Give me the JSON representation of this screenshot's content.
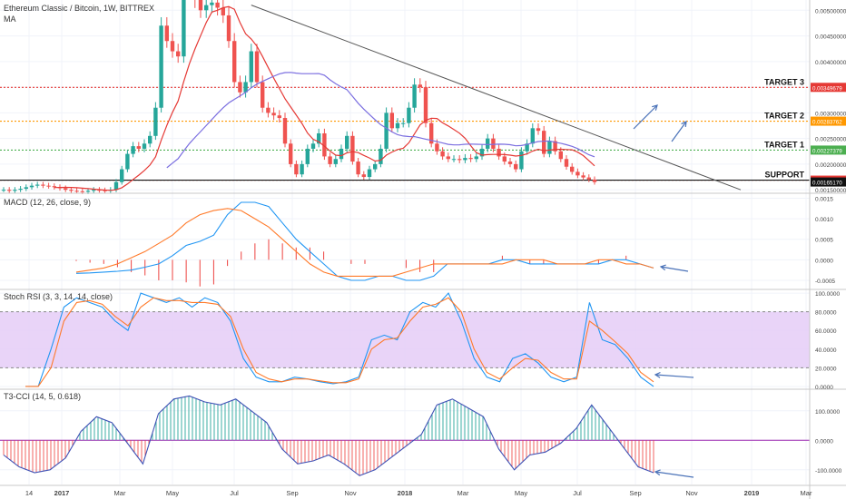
{
  "header": {
    "symbol": "Ethereum Classic / Bitcoin, 1W, BITTREX",
    "ma_label": "MA"
  },
  "colors": {
    "up": "#26a69a",
    "down": "#ef5350",
    "ma_red": "#e53935",
    "ma_blue": "#7b6fe0",
    "trendline": "#555555",
    "target3": "#e53935",
    "target2": "#ff9800",
    "target1": "#4caf50",
    "support": "#111111",
    "macd_line": "#2196f3",
    "signal_line": "#ff7a2a",
    "rsi_band": "#e5ccf7",
    "arrow": "#4a72b8"
  },
  "x_axis": {
    "ticks": [
      "14",
      "2017",
      "Mar",
      "May",
      "Jul",
      "Sep",
      "Nov",
      "2018",
      "Mar",
      "May",
      "Jul",
      "Sep",
      "Nov",
      "2019",
      "Mar"
    ],
    "bold_ticks": [
      "2017",
      "2018",
      "2019"
    ]
  },
  "chart_data": [
    {
      "type": "candlestick",
      "pane": "price",
      "y_ticks": [
        "0.00500000",
        "0.00450000",
        "0.00400000",
        "0.00350000",
        "0.00300000",
        "0.00250000",
        "0.00200000",
        "0.00150000"
      ],
      "ylim": [
        0.00145,
        0.0052
      ],
      "levels": [
        {
          "label": "TARGET 3",
          "value": 0.00349679,
          "value_text": "0.00349679",
          "color": "#e53935"
        },
        {
          "label": "TARGET 2",
          "value": 0.00283762,
          "value_text": "0.00283762",
          "color": "#ff9800"
        },
        {
          "label": "TARGET 1",
          "value": 0.00227379,
          "value_text": "0.00227379",
          "color": "#4caf50"
        },
        {
          "label": "SUPPORT",
          "value": 0.00168775,
          "value_text": "0.00168775",
          "color": "#e53935"
        }
      ],
      "last_price": {
        "value": 0.0016517,
        "value_text": "0.00165170"
      },
      "close": [
        0.0015,
        0.00148,
        0.0015,
        0.00152,
        0.00155,
        0.00158,
        0.0016,
        0.00158,
        0.00157,
        0.00155,
        0.00153,
        0.0015,
        0.00148,
        0.00147,
        0.00146,
        0.00148,
        0.0015,
        0.00149,
        0.00148,
        0.0015,
        0.00165,
        0.0019,
        0.0022,
        0.00235,
        0.0023,
        0.0024,
        0.00255,
        0.0031,
        0.0047,
        0.0044,
        0.0042,
        0.0041,
        0.006,
        0.0058,
        0.0052,
        0.005,
        0.0051,
        0.00515,
        0.00505,
        0.0049,
        0.0044,
        0.0036,
        0.0034,
        0.0036,
        0.0042,
        0.0036,
        0.0031,
        0.003,
        0.00295,
        0.0029,
        0.0024,
        0.002,
        0.0018,
        0.002,
        0.0023,
        0.0024,
        0.0026,
        0.00215,
        0.002,
        0.0021,
        0.0023,
        0.00255,
        0.00205,
        0.0018,
        0.00175,
        0.0019,
        0.002,
        0.0023,
        0.003,
        0.0027,
        0.0028,
        0.0028,
        0.0031,
        0.00355,
        0.0035,
        0.0028,
        0.0024,
        0.00225,
        0.00215,
        0.0021,
        0.0021,
        0.00208,
        0.00212,
        0.0021,
        0.00215,
        0.0023,
        0.0025,
        0.0023,
        0.00215,
        0.00205,
        0.002,
        0.0019,
        0.00225,
        0.0024,
        0.0027,
        0.00265,
        0.0022,
        0.00245,
        0.00225,
        0.0021,
        0.00195,
        0.00185,
        0.00178,
        0.00174,
        0.0017,
        0.00165
      ]
    },
    {
      "type": "line",
      "pane": "macd",
      "title": "MACD (12, 26, close, 9)",
      "y_ticks": [
        "0.0015",
        "0.0010",
        "0.0005",
        "0.0000",
        "-0.0005"
      ],
      "ylim": [
        -0.0007,
        0.0016
      ],
      "macd": [
        -0.00033,
        -0.00032,
        -0.0003,
        -0.00028,
        -0.00025,
        -0.00018,
        -0.0001,
        0.0001,
        0.00035,
        0.00045,
        0.0006,
        0.0011,
        0.0014,
        0.0014,
        0.0013,
        0.0009,
        0.0005,
        0.0002,
        -0.0001,
        -0.0004,
        -0.0005,
        -0.0005,
        -0.0004,
        -0.0004,
        -0.0005,
        -0.0005,
        -0.0004,
        -0.0001,
        -0.0001,
        -0.0001,
        -0.0001,
        0.0,
        0.0,
        -0.0001,
        -0.0001,
        -0.0001,
        -0.0001,
        -0.0001,
        -0.0001,
        0.0,
        0.0,
        -0.0001,
        -0.0002
      ],
      "signal": [
        -0.0003,
        -0.00025,
        -0.0002,
        -0.0001,
        5e-05,
        0.0002,
        0.0004,
        0.0006,
        0.0009,
        0.0011,
        0.0012,
        0.00125,
        0.0012,
        0.001,
        0.0008,
        0.0005,
        0.0002,
        -0.0001,
        -0.0003,
        -0.0004,
        -0.0004,
        -0.0004,
        -0.0004,
        -0.0004,
        -0.0003,
        -0.0002,
        -0.0001,
        -0.0001,
        -0.0001,
        -0.0001,
        -0.0001,
        -0.0001,
        0.0,
        0.0,
        0.0,
        -0.0001,
        -0.0001,
        -0.0001,
        0.0,
        0.0,
        -0.0001,
        -0.0001,
        -0.0002
      ]
    },
    {
      "type": "line",
      "pane": "stoch",
      "title": "Stoch RSI (3, 3, 14, 14, close)",
      "y_ticks": [
        "100.0000",
        "80.0000",
        "60.0000",
        "40.0000",
        "20.0000",
        "0.0000"
      ],
      "ylim": [
        -2,
        103
      ],
      "band": [
        20,
        80
      ],
      "k": [
        0,
        0,
        40,
        85,
        95,
        90,
        85,
        70,
        60,
        100,
        95,
        90,
        95,
        85,
        95,
        90,
        70,
        30,
        10,
        5,
        5,
        10,
        8,
        5,
        3,
        5,
        10,
        50,
        55,
        50,
        80,
        90,
        85,
        100,
        70,
        30,
        10,
        5,
        30,
        35,
        25,
        10,
        5,
        10,
        90,
        50,
        45,
        30,
        10,
        0
      ],
      "d": [
        0,
        0,
        20,
        70,
        90,
        92,
        88,
        75,
        65,
        85,
        95,
        92,
        92,
        90,
        90,
        88,
        75,
        40,
        15,
        8,
        5,
        8,
        8,
        6,
        4,
        4,
        8,
        40,
        50,
        52,
        70,
        85,
        88,
        95,
        80,
        40,
        15,
        8,
        20,
        30,
        28,
        15,
        8,
        8,
        70,
        60,
        48,
        35,
        15,
        5
      ]
    },
    {
      "type": "line",
      "pane": "cci",
      "title": "T3-CCI (14, 5, 0.618)",
      "y_ticks": [
        "100.0000",
        "0.0000",
        "-100.0000"
      ],
      "ylim": [
        -150,
        170
      ],
      "values": [
        -50,
        -90,
        -110,
        -100,
        -60,
        30,
        80,
        60,
        -10,
        -80,
        90,
        140,
        150,
        130,
        120,
        140,
        100,
        60,
        -30,
        -80,
        -70,
        -50,
        -80,
        -120,
        -100,
        -60,
        -20,
        20,
        120,
        140,
        110,
        80,
        -30,
        -100,
        -50,
        -40,
        -10,
        40,
        120,
        50,
        -20,
        -90,
        -110
      ]
    }
  ]
}
